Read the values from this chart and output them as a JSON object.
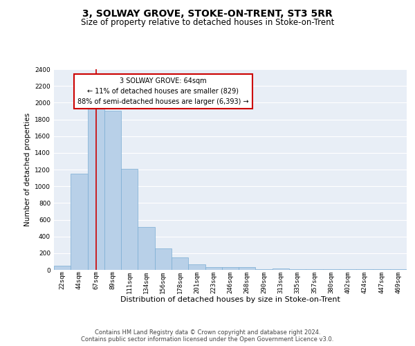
{
  "title": "3, SOLWAY GROVE, STOKE-ON-TRENT, ST3 5RR",
  "subtitle": "Size of property relative to detached houses in Stoke-on-Trent",
  "xlabel": "Distribution of detached houses by size in Stoke-on-Trent",
  "ylabel": "Number of detached properties",
  "categories": [
    "22sqm",
    "44sqm",
    "67sqm",
    "89sqm",
    "111sqm",
    "134sqm",
    "156sqm",
    "178sqm",
    "201sqm",
    "223sqm",
    "246sqm",
    "268sqm",
    "290sqm",
    "313sqm",
    "335sqm",
    "357sqm",
    "380sqm",
    "402sqm",
    "424sqm",
    "447sqm",
    "469sqm"
  ],
  "values": [
    50,
    1150,
    1950,
    1900,
    1210,
    510,
    260,
    150,
    70,
    35,
    35,
    30,
    10,
    15,
    10,
    5,
    12,
    5,
    5,
    5,
    5
  ],
  "bar_color": "#b8d0e8",
  "bar_edge_color": "#7aadd4",
  "background_color": "#e8eef6",
  "grid_color": "#ffffff",
  "red_line_color": "#cc0000",
  "annotation_line1": "3 SOLWAY GROVE: 64sqm",
  "annotation_line2": "← 11% of detached houses are smaller (829)",
  "annotation_line3": "88% of semi-detached houses are larger (6,393) →",
  "annotation_box_facecolor": "#ffffff",
  "annotation_box_edgecolor": "#cc0000",
  "ylim": [
    0,
    2400
  ],
  "yticks": [
    0,
    200,
    400,
    600,
    800,
    1000,
    1200,
    1400,
    1600,
    1800,
    2000,
    2200,
    2400
  ],
  "footer_line1": "Contains HM Land Registry data © Crown copyright and database right 2024.",
  "footer_line2": "Contains public sector information licensed under the Open Government Licence v3.0.",
  "title_fontsize": 10,
  "subtitle_fontsize": 8.5,
  "xlabel_fontsize": 8,
  "ylabel_fontsize": 7.5,
  "tick_fontsize": 6.5,
  "footer_fontsize": 6,
  "annotation_fontsize": 7
}
